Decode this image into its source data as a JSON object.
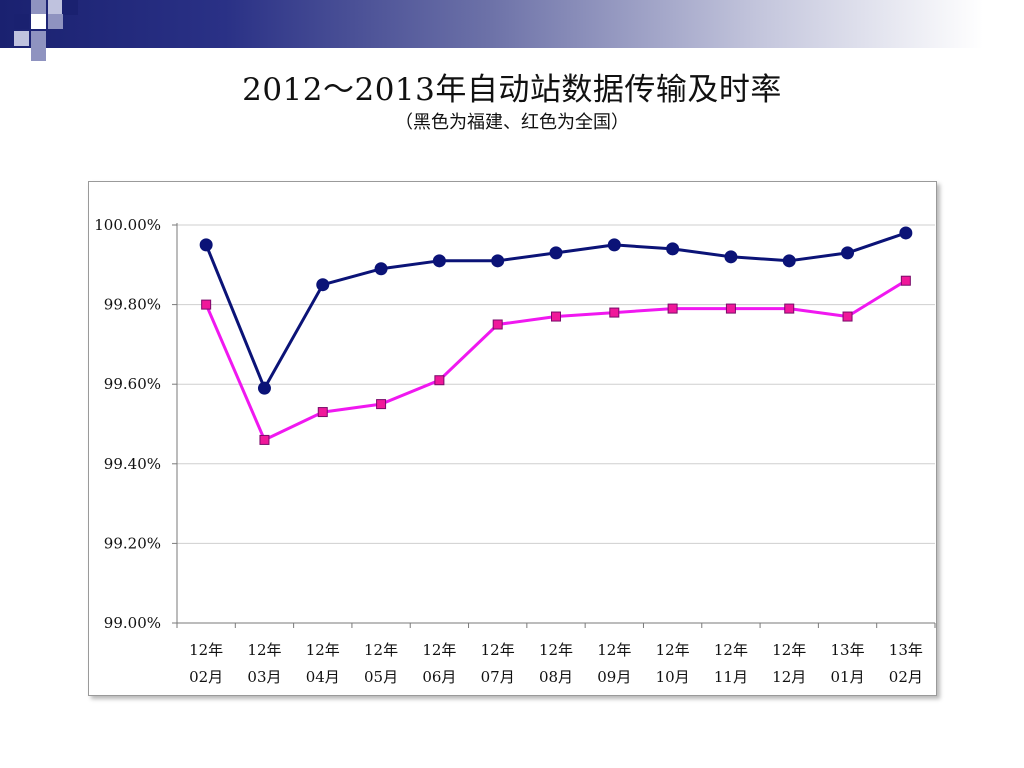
{
  "slide": {
    "title": "2012～2013年自动站数据传输及时率",
    "subtitle": "（黑色为福建、红色为全国）"
  },
  "colors": {
    "fujian_line": "#0b1377",
    "national_line": "#f018f0",
    "national_marker": "#f0189a",
    "header_dark": "#1a2170"
  },
  "chart_data": {
    "type": "line",
    "title": "",
    "xlabel": "",
    "ylabel": "",
    "categories": [
      [
        "12年",
        "02月"
      ],
      [
        "12年",
        "03月"
      ],
      [
        "12年",
        "04月"
      ],
      [
        "12年",
        "05月"
      ],
      [
        "12年",
        "06月"
      ],
      [
        "12年",
        "07月"
      ],
      [
        "12年",
        "08月"
      ],
      [
        "12年",
        "09月"
      ],
      [
        "12年",
        "10月"
      ],
      [
        "12年",
        "11月"
      ],
      [
        "12年",
        "12月"
      ],
      [
        "13年",
        "01月"
      ],
      [
        "13年",
        "02月"
      ]
    ],
    "ylim": [
      99.0,
      100.0
    ],
    "yticks": [
      99.0,
      99.2,
      99.4,
      99.6,
      99.8,
      100.0
    ],
    "ytick_labels": [
      "99.00%",
      "99.20%",
      "99.40%",
      "99.60%",
      "99.80%",
      "100.00%"
    ],
    "grid": "horizontal",
    "legend": "none",
    "series": [
      {
        "values": [
          99.95,
          99.59,
          99.85,
          99.89,
          99.91,
          99.91,
          99.93,
          99.95,
          99.94,
          99.92,
          99.91,
          99.93,
          99.98
        ],
        "color": "#0b1377",
        "marker": "circle"
      },
      {
        "values": [
          99.8,
          99.46,
          99.53,
          99.55,
          99.61,
          99.75,
          99.77,
          99.78,
          99.79,
          99.79,
          99.79,
          99.77,
          99.86
        ],
        "color": "#f018f0",
        "marker": "square"
      }
    ]
  }
}
